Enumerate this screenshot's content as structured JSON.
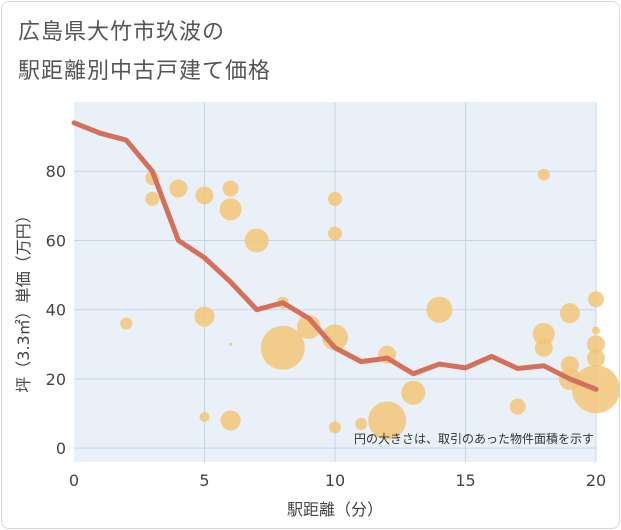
{
  "title_line1": "広島県大竹市玖波の",
  "title_line2": "駅距離別中古戸建て価格",
  "chart_data": {
    "type": "scatter",
    "xlabel": "駅距離（分）",
    "ylabel": "坪（3.3㎡）単価（万円）",
    "xlim": [
      0,
      20
    ],
    "ylim": [
      -4,
      100
    ],
    "x_ticks": [
      0,
      5,
      10,
      15,
      20
    ],
    "y_ticks": [
      0,
      20,
      40,
      60,
      80
    ],
    "grid": true,
    "annotation": "円の大きさは、取引のあった物件面積を示す",
    "colors": {
      "bubble": "#f2c678",
      "line": "#d4705a",
      "plot_bg": "#eaf0f8",
      "grid": "#c5d5e9"
    },
    "series": [
      {
        "kind": "bubbles",
        "points": [
          {
            "x": 2,
            "y": 36,
            "s": 6
          },
          {
            "x": 3,
            "y": 78,
            "s": 7
          },
          {
            "x": 3,
            "y": 72,
            "s": 7
          },
          {
            "x": 4,
            "y": 75,
            "s": 9
          },
          {
            "x": 5,
            "y": 73,
            "s": 9
          },
          {
            "x": 5,
            "y": 38,
            "s": 10
          },
          {
            "x": 5,
            "y": 9,
            "s": 5
          },
          {
            "x": 6,
            "y": 75,
            "s": 8
          },
          {
            "x": 6,
            "y": 69,
            "s": 11
          },
          {
            "x": 6,
            "y": 30,
            "s": 1.5
          },
          {
            "x": 6,
            "y": 8,
            "s": 10
          },
          {
            "x": 7,
            "y": 60,
            "s": 12
          },
          {
            "x": 8,
            "y": 42,
            "s": 6
          },
          {
            "x": 8,
            "y": 29,
            "s": 22
          },
          {
            "x": 9,
            "y": 35,
            "s": 12
          },
          {
            "x": 10,
            "y": 72,
            "s": 7
          },
          {
            "x": 10,
            "y": 62,
            "s": 7
          },
          {
            "x": 10,
            "y": 32,
            "s": 13
          },
          {
            "x": 10,
            "y": 6,
            "s": 6
          },
          {
            "x": 11,
            "y": 7,
            "s": 6
          },
          {
            "x": 12,
            "y": 27,
            "s": 9
          },
          {
            "x": 12,
            "y": 8,
            "s": 19
          },
          {
            "x": 13,
            "y": 16,
            "s": 12
          },
          {
            "x": 14,
            "y": 40,
            "s": 13
          },
          {
            "x": 17,
            "y": 12,
            "s": 8
          },
          {
            "x": 18,
            "y": 79,
            "s": 6
          },
          {
            "x": 18,
            "y": 33,
            "s": 11
          },
          {
            "x": 18,
            "y": 29,
            "s": 9
          },
          {
            "x": 19,
            "y": 39,
            "s": 10
          },
          {
            "x": 19,
            "y": 24,
            "s": 9
          },
          {
            "x": 19,
            "y": 20,
            "s": 11
          },
          {
            "x": 20,
            "y": 43,
            "s": 8
          },
          {
            "x": 20,
            "y": 34,
            "s": 4
          },
          {
            "x": 20,
            "y": 30,
            "s": 9
          },
          {
            "x": 20,
            "y": 26,
            "s": 9
          },
          {
            "x": 20,
            "y": 17,
            "s": 24
          }
        ]
      },
      {
        "kind": "line",
        "x": [
          0,
          1,
          2,
          3,
          4,
          5,
          6,
          7,
          8,
          9,
          10,
          11,
          12,
          13,
          14,
          15,
          16,
          17,
          18,
          19,
          20
        ],
        "values": [
          94,
          91,
          89,
          80,
          60,
          55,
          48,
          40,
          42,
          37.5,
          29,
          25,
          26,
          21.5,
          24.3,
          23.2,
          26.5,
          23,
          23.8,
          20,
          17
        ]
      }
    ]
  }
}
